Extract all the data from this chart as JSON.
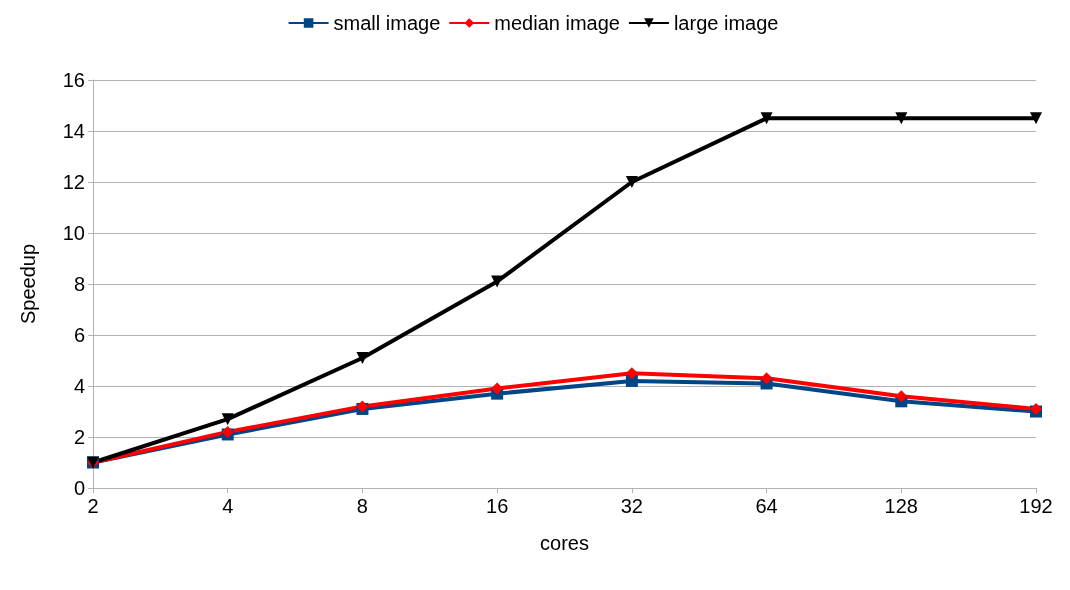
{
  "chart_data": {
    "type": "line",
    "xlabel": "cores",
    "ylabel": "Speedup",
    "categories": [
      "2",
      "4",
      "8",
      "16",
      "32",
      "64",
      "128",
      "192"
    ],
    "series": [
      {
        "name": "small image",
        "color": "#004586",
        "marker": "square",
        "values": [
          1.0,
          2.1,
          3.1,
          3.7,
          4.2,
          4.1,
          3.4,
          3.0
        ]
      },
      {
        "name": "median image",
        "color": "#ff0000",
        "marker": "diamond",
        "values": [
          1.0,
          2.2,
          3.2,
          3.9,
          4.5,
          4.3,
          3.6,
          3.1
        ]
      },
      {
        "name": "large image",
        "color": "#000000",
        "marker": "triangle",
        "values": [
          1.0,
          2.7,
          5.1,
          8.1,
          12.0,
          14.5,
          14.5,
          14.5
        ]
      }
    ],
    "ylim": [
      0,
      16
    ],
    "yticks": [
      0,
      2,
      4,
      6,
      8,
      10,
      12,
      14,
      16
    ],
    "grid": "y",
    "legend": "top",
    "line_style": "solid"
  }
}
